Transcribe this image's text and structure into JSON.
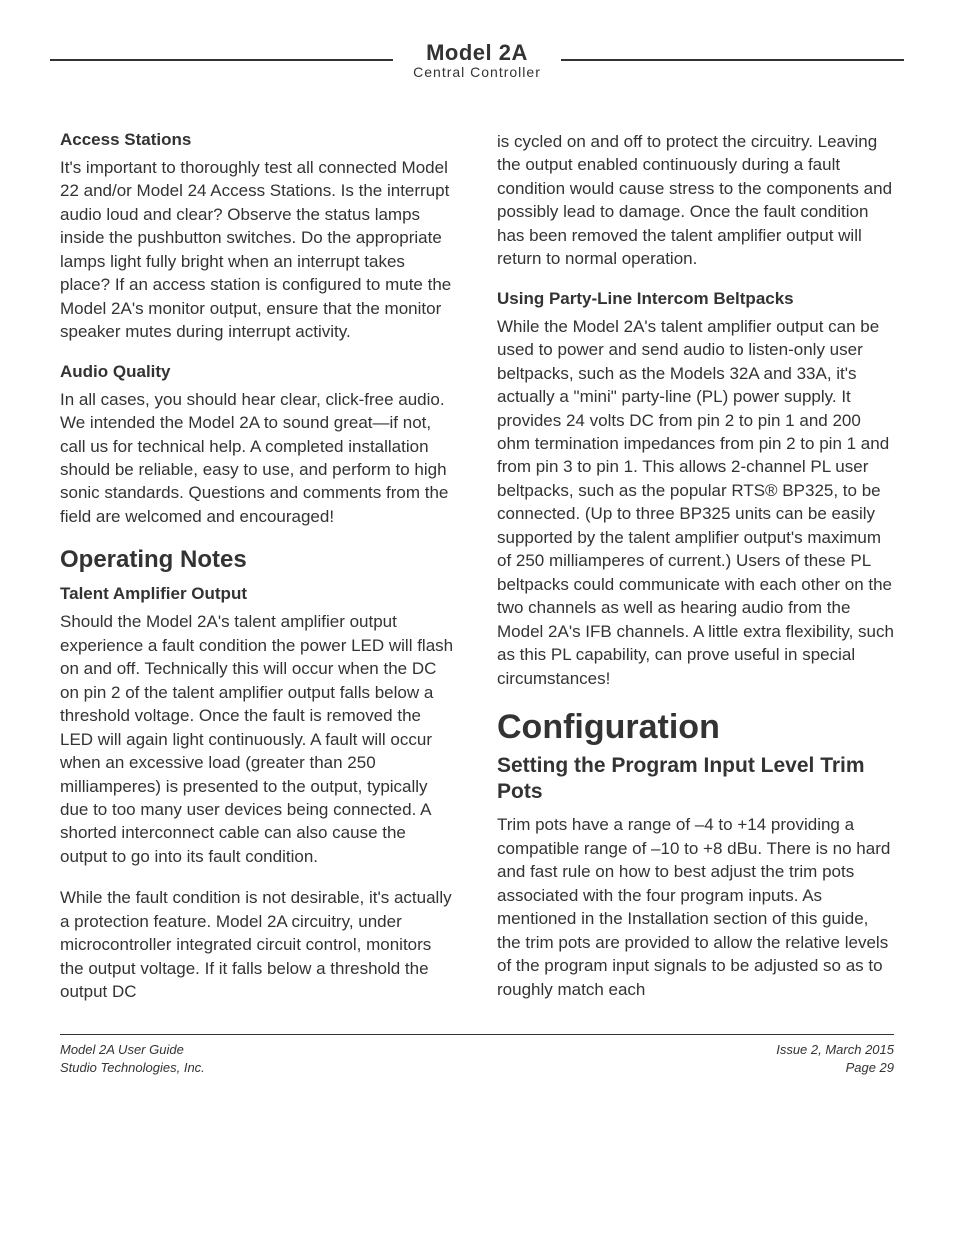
{
  "header": {
    "model": "Model 2A",
    "subtitle": "Central Controller"
  },
  "left_column": {
    "sec1": {
      "heading": "Access Stations",
      "body": "It's important to thoroughly test all connected Model 22 and/or Model 24 Access Stations. Is the interrupt audio loud and clear? Observe the status lamps inside the pushbutton switches. Do the appropriate lamps light fully bright when an interrupt takes place? If an access station is configured to mute the Model 2A's monitor output, ensure that the monitor speaker mutes during interrupt activity."
    },
    "sec2": {
      "heading": "Audio Quality",
      "body": "In all cases, you should hear clear, click-free audio. We intended the Model 2A to sound great—if not, call us for technical help. A completed installation should be reliable, easy to use, and perform to high sonic standards. Questions and comments from the field are welcomed and encouraged!"
    },
    "sec3": {
      "section_title": "Operating Notes",
      "heading": "Talent Amplifier Output",
      "body1": "Should the Model 2A's talent amplifier output experience a fault condition the power LED will flash on and off. Technically this will occur when the DC on pin 2 of the talent amplifier output falls below a threshold voltage. Once the fault is removed the LED will again light continuously. A fault will occur when an excessive load (greater than 250 milliamperes) is presented to the output, typically due to too many user devices being connected. A shorted interconnect cable can also cause the output to go into its fault condition.",
      "body2": "While the fault condition is not desirable, it's actually a protection feature. Model 2A circuitry, under microcontroller integrated circuit control, monitors the output voltage. If it falls below a threshold the output DC"
    }
  },
  "right_column": {
    "cont": "is cycled on and off to protect the circuitry. Leaving the output enabled continuously during a fault condition would cause stress to the components and possibly lead to damage. Once the fault condition has been removed the talent amplifier output will return to normal operation.",
    "sec1": {
      "heading": "Using Party-Line Intercom Beltpacks",
      "body": "While the Model 2A's talent amplifier output can be used to power and send audio to listen-only user beltpacks, such as the Models 32A and 33A, it's actually a \"mini\" party-line (PL) power supply. It provides 24 volts DC from pin 2 to pin 1 and 200 ohm termination impedances from pin 2 to pin 1 and from pin 3 to pin 1. This allows 2-channel PL user beltpacks, such as the popular RTS® BP325, to be connected. (Up to three BP325 units can be easily supported by the talent amplifier output's maximum of 250 milliamperes of current.) Users of these PL beltpacks could communicate with each other on the two channels as well as hearing audio from the Model 2A's IFB channels. A little extra flexibility, such as this PL capability, can prove useful in special circumstances!"
    },
    "config": {
      "title": "Configuration",
      "subtitle": "Setting the Program Input Level Trim Pots",
      "body": "Trim pots have a range of –4 to +14 providing a compatible range of –10 to +8 dBu. There is no hard and fast rule on how to best adjust the trim pots associated with the four program inputs. As mentioned in the Installation section of this guide, the trim pots are provided to allow the relative levels of the program input signals to be adjusted so as to roughly match each"
    }
  },
  "footer": {
    "left1": "Model 2A User Guide",
    "left2": "Studio Technologies, Inc.",
    "right1": "Issue 2, March 2015",
    "right2": "Page 29"
  }
}
